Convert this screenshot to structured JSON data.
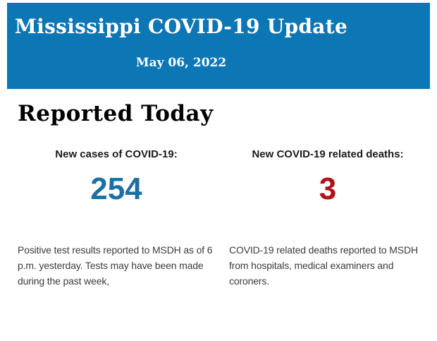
{
  "header": {
    "title": "Mississippi COVID-19 Update",
    "date": "May 06, 2022"
  },
  "section": {
    "title": "Reported Today"
  },
  "stats": [
    {
      "id": "new-cases",
      "label": "New cases of COVID-19:",
      "value": "254",
      "description": "Positive test results reported to MSDH as of 6 p.m. yesterday. Tests may have been made during the past week,"
    },
    {
      "id": "new-deaths",
      "label": "New COVID-19 related deaths:",
      "value": "3",
      "description": "COVID-19 related deaths reported to MSDH from hospitals, medical examiners and coroners."
    }
  ],
  "colors": {
    "banner_background": "#0d76b5",
    "banner_text": "#ffffff",
    "heading_text": "#000000",
    "label_text": "#1b1b1b",
    "body_text": "#3c3c3c",
    "cases_value": "#1b6fa4",
    "deaths_value": "#b2121a",
    "page_background": "#ffffff"
  }
}
